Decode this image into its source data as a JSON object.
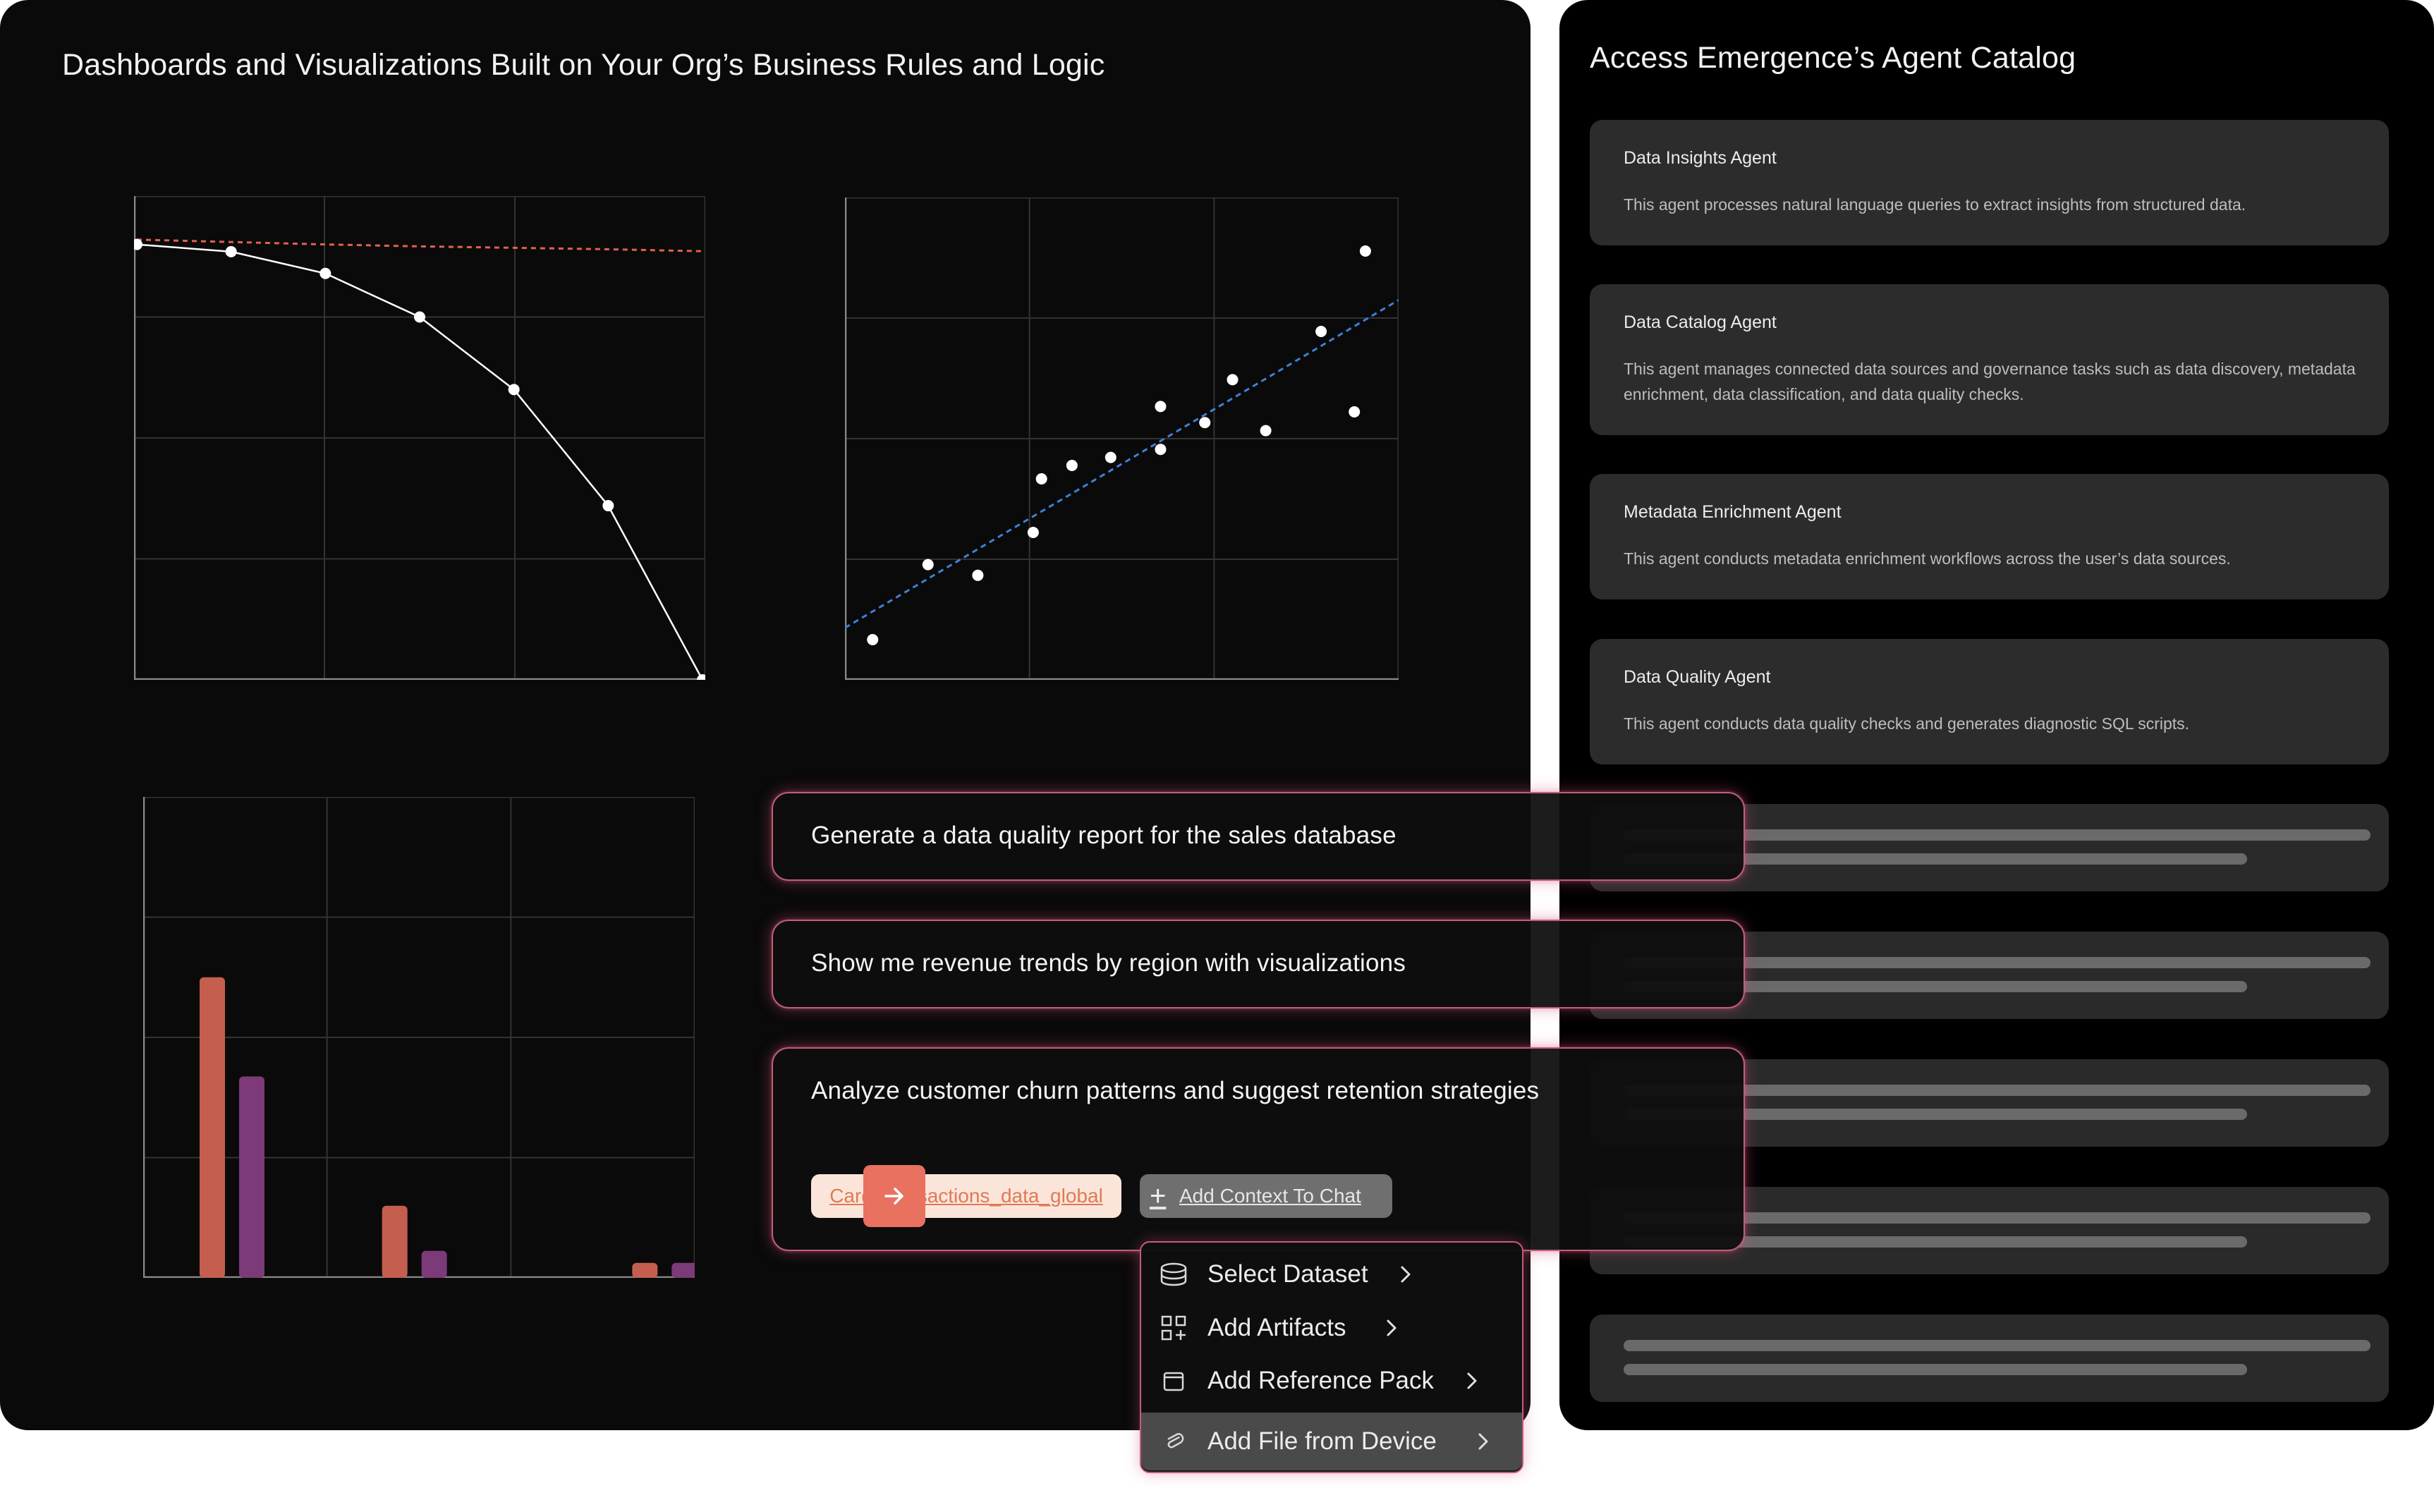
{
  "left_panel": {
    "title": "Dashboards and Visualizations Built on Your Org’s Business Rules and Logic"
  },
  "right_panel": {
    "title": "Access Emergence’s Agent Catalog",
    "agents": [
      {
        "name": "Data Insights Agent",
        "description": "This agent processes natural language queries to extract insights from structured data."
      },
      {
        "name": "Data Catalog Agent",
        "description": "This agent manages connected data sources and governance tasks such as data discovery, metadata enrichment, data classification, and data quality checks."
      },
      {
        "name": "Metadata Enrichment Agent",
        "description": "This agent conducts metadata enrichment workflows across the user’s data sources."
      },
      {
        "name": "Data Quality Agent",
        "description": "This agent conducts data quality checks and generates diagnostic SQL scripts."
      }
    ]
  },
  "prompts": [
    "Generate a data quality report for the sales database",
    "Show me revenue trends by region with visualizations",
    "Analyze customer churn patterns and suggest retention strategies"
  ],
  "composer": {
    "dataset_chip": "Card_transactions_data_global",
    "add_context_label": "Add Context To Chat",
    "send_icon": "arrow-right-icon"
  },
  "context_menu": {
    "items": [
      {
        "label": "Select Dataset",
        "icon": "database-icon"
      },
      {
        "label": "Add Artifacts",
        "icon": "grid-plus-icon"
      },
      {
        "label": "Add Reference Pack",
        "icon": "folder-icon"
      },
      {
        "label": "Add File from Device",
        "icon": "paperclip-icon"
      }
    ]
  },
  "colors": {
    "accent": "#e8725f",
    "bar_orange": "#c45e4e",
    "bar_purple": "#7c3a78",
    "trend_red": "#e0624f",
    "trend_blue": "#3f7fd8"
  },
  "chart_data": [
    {
      "type": "line",
      "x": [
        0,
        1,
        2,
        3,
        4,
        5,
        6
      ],
      "series": [
        {
          "values": [
            100,
            98.5,
            94,
            85,
            70,
            46,
            10
          ]
        },
        {
          "values": [
            101,
            100.5,
            100,
            99.6,
            99.3,
            99,
            98.6
          ]
        }
      ],
      "ylim": [
        10,
        110
      ],
      "grid": true
    },
    {
      "type": "scatter",
      "x": [
        0.5,
        1.5,
        2.4,
        3.4,
        3.55,
        4.1,
        4.8,
        5.7,
        5.7,
        6.5,
        7.0,
        7.6,
        8.6,
        9.2,
        9.4
      ],
      "y": [
        1.5,
        4.3,
        3.9,
        5.5,
        7.5,
        8.0,
        8.3,
        10.2,
        8.6,
        9.6,
        11.2,
        9.3,
        13.0,
        10.0,
        16.0
      ],
      "trendline": true,
      "xlim": [
        0,
        10
      ],
      "ylim": [
        0,
        18
      ],
      "grid": true
    },
    {
      "type": "bar",
      "categories": [
        "",
        "",
        ""
      ],
      "series": [
        {
          "values": [
            100,
            24,
            5
          ]
        },
        {
          "values": [
            67,
            9,
            5
          ]
        }
      ],
      "ylim": [
        0,
        160
      ],
      "grid": true
    }
  ]
}
